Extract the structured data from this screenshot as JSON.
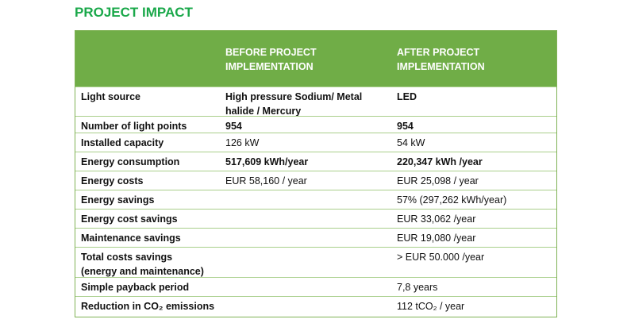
{
  "title": "PROJECT IMPACT",
  "headers": {
    "before": "BEFORE PROJECT\nIMPLEMENTATION",
    "after": "AFTER PROJECT\nIMPLEMENTATION"
  },
  "rows": [
    {
      "label": "Light source",
      "before": "High pressure Sodium/ Metal halide / Mercury",
      "after": "LED"
    },
    {
      "label": "Number of light points",
      "before": "954",
      "after": "954"
    },
    {
      "label": "Installed capacity",
      "before": "126 kW",
      "after": "54 kW"
    },
    {
      "label": "Energy consumption",
      "before": "517,609 kWh/year",
      "after": "220,347 kWh /year"
    },
    {
      "label": "Energy costs",
      "before": "EUR 58,160 / year",
      "after": "EUR 25,098 / year"
    },
    {
      "label": "Energy savings",
      "before": "",
      "after": "57% (297,262 kWh/year)"
    },
    {
      "label": "Energy cost savings",
      "before": "",
      "after": "EUR 33,062 /year"
    },
    {
      "label": "Maintenance savings",
      "before": "",
      "after": "EUR 19,080 /year"
    },
    {
      "label": "Total costs savings (energy and maintenance)",
      "before": "",
      "after": "> EUR 50.000 /year"
    },
    {
      "label": "Simple payback period",
      "before": "",
      "after": "7,8 years"
    },
    {
      "label": "Reduction in CO₂ emissions",
      "before": "",
      "after": "112 tCO₂ / year"
    }
  ]
}
